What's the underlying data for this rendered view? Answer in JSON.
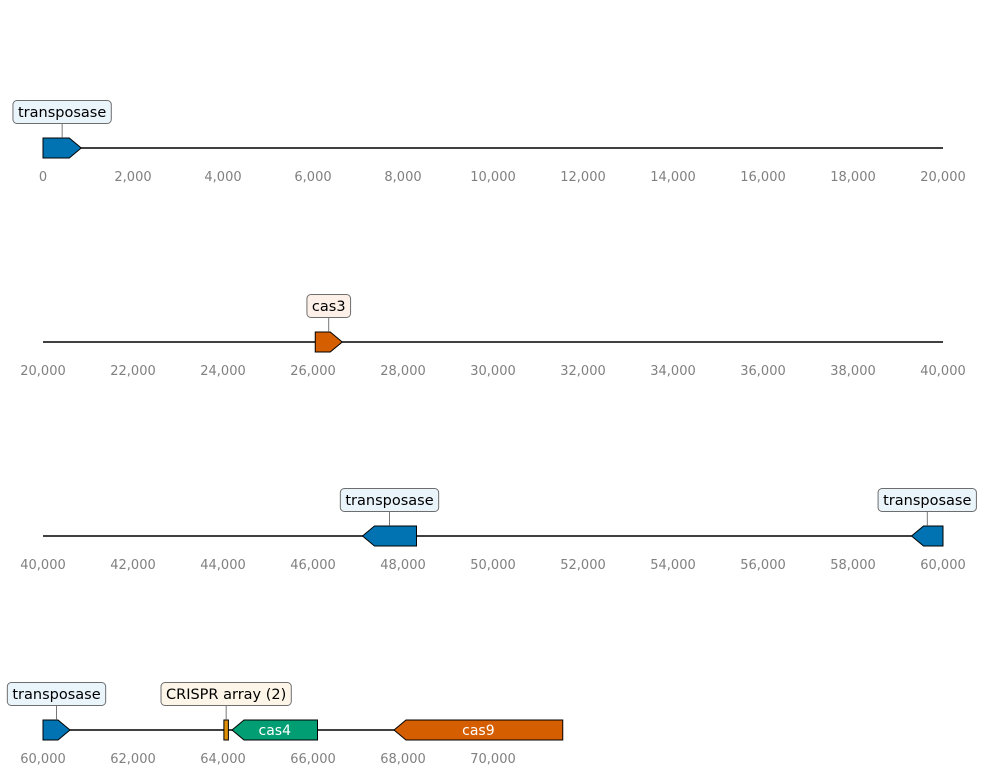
{
  "colors": {
    "transposase": "#0173b2",
    "cas3": "#d55e00",
    "cas4": "#029e73",
    "cas9": "#d55e00",
    "crispr": "#de8f05",
    "transposase_box": "#eaf4fb",
    "cas3_box": "#fdf0e8",
    "crispr_box": "#fdf6e8",
    "axis_text": "#808080"
  },
  "tracks": [
    {
      "range": [
        0,
        20000
      ],
      "ticks": [
        "0",
        "2,000",
        "4,000",
        "6,000",
        "8,000",
        "10,000",
        "12,000",
        "14,000",
        "16,000",
        "18,000",
        "20,000"
      ],
      "features": [
        {
          "start": 0,
          "end": 850,
          "strand": 1,
          "color_key": "transposase",
          "callout": "transposase",
          "box_key": "transposase_box"
        }
      ]
    },
    {
      "range": [
        20000,
        40000
      ],
      "ticks": [
        "20,000",
        "22,000",
        "24,000",
        "26,000",
        "28,000",
        "30,000",
        "32,000",
        "34,000",
        "36,000",
        "38,000",
        "40,000"
      ],
      "features": [
        {
          "start": 26050,
          "end": 26650,
          "strand": 1,
          "color_key": "cas3",
          "callout": "cas3",
          "box_key": "cas3_box"
        }
      ]
    },
    {
      "range": [
        40000,
        60000
      ],
      "ticks": [
        "40,000",
        "42,000",
        "44,000",
        "46,000",
        "48,000",
        "50,000",
        "52,000",
        "54,000",
        "56,000",
        "58,000",
        "60,000"
      ],
      "features": [
        {
          "start": 47100,
          "end": 48300,
          "strand": -1,
          "color_key": "transposase",
          "callout": "transposase",
          "box_key": "transposase_box"
        },
        {
          "start": 59300,
          "end": 60000,
          "strand": -1,
          "color_key": "transposase",
          "callout": "transposase",
          "box_key": "transposase_box"
        }
      ]
    },
    {
      "range": [
        60000,
        80000
      ],
      "line_end": 71550,
      "ticks": [
        "60,000",
        "62,000",
        "64,000",
        "66,000",
        "68,000",
        "70,000"
      ],
      "features": [
        {
          "start": 60000,
          "end": 60600,
          "strand": 1,
          "color_key": "transposase",
          "callout": "transposase",
          "box_key": "transposase_box"
        },
        {
          "start": 64020,
          "end": 64120,
          "strand": 0,
          "color_key": "crispr",
          "callout": "CRISPR array (2)",
          "box_key": "crispr_box"
        },
        {
          "start": 64200,
          "end": 66100,
          "strand": -1,
          "color_key": "cas4",
          "label": "cas4"
        },
        {
          "start": 67800,
          "end": 71550,
          "strand": -1,
          "color_key": "cas9",
          "label": "cas9"
        }
      ]
    }
  ]
}
